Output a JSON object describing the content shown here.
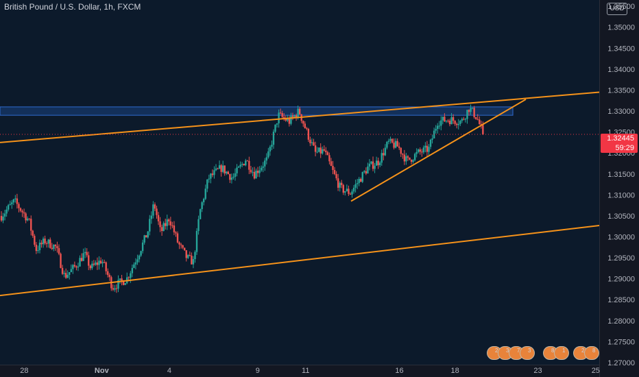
{
  "header": {
    "title": "British Pound / U.S. Dollar, 1h, FXCM",
    "currency": "USD"
  },
  "price_tag": {
    "price": "1.32445",
    "countdown": "59:29",
    "color": "#f23645"
  },
  "event_badges": [
    "2",
    "3",
    "7",
    "3",
    "8",
    "1",
    "2",
    "8"
  ],
  "colors": {
    "background": "#0c1a2b",
    "up": "#26a69a",
    "down": "#ef5350",
    "trendline": "#f7931a",
    "zone": "#1e4e9a"
  },
  "chart_data": {
    "type": "candlestick",
    "symbol": "British Pound / U.S. Dollar",
    "interval": "1h",
    "source": "FXCM",
    "x_ticks": [
      "28",
      "Nov",
      "4",
      "9",
      "11",
      "16",
      "18",
      "23",
      "25"
    ],
    "y_ticks": [
      "1.35500",
      "1.35000",
      "1.34500",
      "1.34000",
      "1.33500",
      "1.33000",
      "1.32500",
      "1.32000",
      "1.31500",
      "1.31000",
      "1.30500",
      "1.30000",
      "1.29500",
      "1.29000",
      "1.28500",
      "1.28000",
      "1.27500",
      "1.27000"
    ],
    "ylim": [
      1.2695,
      1.3565
    ],
    "last_price": 1.32445,
    "price_path": [
      {
        "t": 0,
        "p": 1.305
      },
      {
        "t": 1.2,
        "p": 1.3085
      },
      {
        "t": 2.5,
        "p": 1.304
      },
      {
        "t": 3.2,
        "p": 1.297
      },
      {
        "t": 4.0,
        "p": 1.299
      },
      {
        "t": 5.0,
        "p": 1.2975
      },
      {
        "t": 5.8,
        "p": 1.2905
      },
      {
        "t": 6.8,
        "p": 1.293
      },
      {
        "t": 7.6,
        "p": 1.296
      },
      {
        "t": 8.2,
        "p": 1.2925
      },
      {
        "t": 9.2,
        "p": 1.2945
      },
      {
        "t": 10.2,
        "p": 1.288
      },
      {
        "t": 11.5,
        "p": 1.29
      },
      {
        "t": 12.5,
        "p": 1.2955
      },
      {
        "t": 13.4,
        "p": 1.301
      },
      {
        "t": 14.0,
        "p": 1.308
      },
      {
        "t": 14.6,
        "p": 1.301
      },
      {
        "t": 15.4,
        "p": 1.3045
      },
      {
        "t": 16.2,
        "p": 1.2985
      },
      {
        "t": 17.0,
        "p": 1.295
      },
      {
        "t": 17.6,
        "p": 1.294
      },
      {
        "t": 18.2,
        "p": 1.306
      },
      {
        "t": 19.0,
        "p": 1.314
      },
      {
        "t": 20.2,
        "p": 1.3165
      },
      {
        "t": 21.2,
        "p": 1.314
      },
      {
        "t": 22.4,
        "p": 1.3185
      },
      {
        "t": 23.2,
        "p": 1.315
      },
      {
        "t": 24.4,
        "p": 1.3185
      },
      {
        "t": 25.4,
        "p": 1.329
      },
      {
        "t": 26.4,
        "p": 1.3275
      },
      {
        "t": 27.3,
        "p": 1.33
      },
      {
        "t": 28.0,
        "p": 1.325
      },
      {
        "t": 28.8,
        "p": 1.32
      },
      {
        "t": 29.6,
        "p": 1.3205
      },
      {
        "t": 30.4,
        "p": 1.3155
      },
      {
        "t": 31.1,
        "p": 1.3115
      },
      {
        "t": 32.0,
        "p": 1.3105
      },
      {
        "t": 32.8,
        "p": 1.3135
      },
      {
        "t": 33.6,
        "p": 1.3165
      },
      {
        "t": 34.6,
        "p": 1.318
      },
      {
        "t": 35.5,
        "p": 1.3225
      },
      {
        "t": 36.4,
        "p": 1.3215
      },
      {
        "t": 37.2,
        "p": 1.318
      },
      {
        "t": 38.2,
        "p": 1.32
      },
      {
        "t": 39.2,
        "p": 1.321
      },
      {
        "t": 40.0,
        "p": 1.3275
      },
      {
        "t": 41.0,
        "p": 1.328
      },
      {
        "t": 42.2,
        "p": 1.3275
      },
      {
        "t": 42.9,
        "p": 1.3308
      },
      {
        "t": 43.6,
        "p": 1.3285
      },
      {
        "t": 44.2,
        "p": 1.3244
      }
    ],
    "resistance_zone": [
      1.329,
      1.331
    ],
    "trendlines": [
      {
        "name": "upper-channel",
        "p_start": 1.3225,
        "p_end": 1.3345
      },
      {
        "name": "lower-channel",
        "p_start": 1.286,
        "p_end": 1.3027
      },
      {
        "name": "rising-support",
        "p_start": 1.3085,
        "p_end": 1.3328
      }
    ],
    "grid": false
  }
}
